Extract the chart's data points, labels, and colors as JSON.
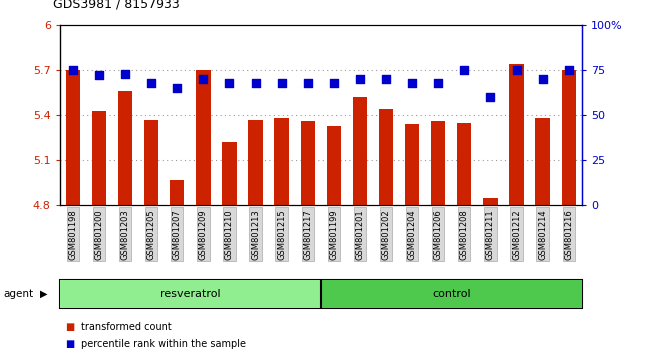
{
  "title": "GDS3981 / 8157933",
  "categories": [
    "GSM801198",
    "GSM801200",
    "GSM801203",
    "GSM801205",
    "GSM801207",
    "GSM801209",
    "GSM801210",
    "GSM801213",
    "GSM801215",
    "GSM801217",
    "GSM801199",
    "GSM801201",
    "GSM801202",
    "GSM801204",
    "GSM801206",
    "GSM801208",
    "GSM801211",
    "GSM801212",
    "GSM801214",
    "GSM801216"
  ],
  "bar_values": [
    5.7,
    5.43,
    5.56,
    5.37,
    4.97,
    5.7,
    5.22,
    5.37,
    5.38,
    5.36,
    5.33,
    5.52,
    5.44,
    5.34,
    5.36,
    5.35,
    4.85,
    5.74,
    5.38,
    5.7
  ],
  "percentile_values": [
    75,
    72,
    73,
    68,
    65,
    70,
    68,
    68,
    68,
    68,
    68,
    70,
    70,
    68,
    68,
    75,
    60,
    75,
    70,
    75
  ],
  "bar_color": "#cc2200",
  "dot_color": "#0000cc",
  "ylim_left": [
    4.8,
    6.0
  ],
  "ylim_right": [
    0,
    100
  ],
  "yticks_left": [
    4.8,
    5.1,
    5.4,
    5.7,
    6.0
  ],
  "ytick_labels_left": [
    "4.8",
    "5.1",
    "5.4",
    "5.7",
    "6"
  ],
  "yticks_right": [
    0,
    25,
    50,
    75,
    100
  ],
  "ytick_labels_right": [
    "0",
    "25",
    "50",
    "75",
    "100%"
  ],
  "group1_label": "resveratrol",
  "group2_label": "control",
  "group1_count": 10,
  "group2_count": 10,
  "agent_label": "agent",
  "legend1_label": "transformed count",
  "legend2_label": "percentile rank within the sample",
  "group1_color": "#90ee90",
  "group2_color": "#4ec94e",
  "bar_width": 0.55,
  "dot_size": 30,
  "gridline_color": "#000000",
  "gridline_alpha": 0.4,
  "grid_yticks": [
    5.1,
    5.4,
    5.7
  ],
  "ymin": 4.8
}
